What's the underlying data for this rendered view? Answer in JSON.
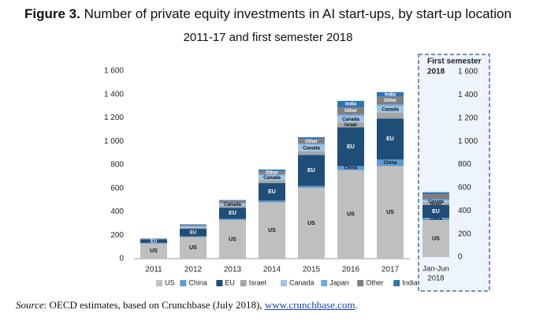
{
  "header": {
    "figure_label": "Figure 3.",
    "title": "Number of private equity investments in AI start-ups, by start-up location",
    "subtitle": "2011-17 and first semester 2018"
  },
  "source": {
    "label": "Source",
    "text": ": OECD estimates, based on Crunchbase (July 2018), ",
    "link": "www.crunchbase.com",
    "end": "."
  },
  "chart_data": {
    "type": "bar",
    "stacked": true,
    "categories": [
      "2011",
      "2012",
      "2013",
      "2014",
      "2015",
      "2016",
      "2017"
    ],
    "series": [
      {
        "name": "US",
        "color": "#bfbfbf",
        "values": [
          130,
          185,
          330,
          480,
          605,
          755,
          790
        ]
      },
      {
        "name": "China",
        "color": "#5b9bd5",
        "values": [
          5,
          5,
          10,
          15,
          15,
          35,
          55
        ]
      },
      {
        "name": "EU",
        "color": "#1f4e79",
        "values": [
          30,
          65,
          95,
          150,
          265,
          330,
          350
        ]
      },
      {
        "name": "Israel",
        "color": "#a6a6a6",
        "values": [
          3,
          8,
          15,
          25,
          30,
          40,
          50
        ]
      },
      {
        "name": "Canada",
        "color": "#9dc3e6",
        "values": [
          3,
          10,
          20,
          40,
          55,
          55,
          55
        ]
      },
      {
        "name": "Japan",
        "color": "#6fa8dc",
        "values": [
          2,
          5,
          5,
          10,
          10,
          15,
          15
        ]
      },
      {
        "name": "Other",
        "color": "#7f7f7f",
        "values": [
          2,
          10,
          20,
          25,
          40,
          60,
          65
        ]
      },
      {
        "name": "India",
        "color": "#2e75b6",
        "values": [
          0,
          5,
          5,
          15,
          15,
          55,
          40
        ]
      }
    ],
    "segment_labels": [
      [
        {
          "series": "US",
          "text": "US"
        },
        {
          "series": "EU",
          "text": "EU"
        }
      ],
      [
        {
          "series": "US",
          "text": "US"
        },
        {
          "series": "EU",
          "text": "EU"
        }
      ],
      [
        {
          "series": "US",
          "text": "US"
        },
        {
          "series": "EU",
          "text": "EU"
        },
        {
          "series": "Canada",
          "text": "Canada"
        }
      ],
      [
        {
          "series": "US",
          "text": "US"
        },
        {
          "series": "EU",
          "text": "EU"
        },
        {
          "series": "Canada",
          "text": "Canada"
        },
        {
          "series": "Other",
          "text": "Other"
        }
      ],
      [
        {
          "series": "US",
          "text": "US"
        },
        {
          "series": "EU",
          "text": "EU"
        },
        {
          "series": "Canada",
          "text": "Canada"
        },
        {
          "series": "Other",
          "text": "Other"
        }
      ],
      [
        {
          "series": "US",
          "text": "US"
        },
        {
          "series": "China",
          "text": "China"
        },
        {
          "series": "EU",
          "text": "EU"
        },
        {
          "series": "Israel",
          "text": "Israel"
        },
        {
          "series": "Canada",
          "text": "Canada"
        },
        {
          "series": "Other",
          "text": "Other"
        },
        {
          "series": "India",
          "text": "India"
        }
      ],
      [
        {
          "series": "US",
          "text": "US"
        },
        {
          "series": "China",
          "text": "China"
        },
        {
          "series": "EU",
          "text": "EU"
        },
        {
          "series": "Canada",
          "text": "Canada"
        },
        {
          "series": "Other",
          "text": "Other"
        },
        {
          "series": "India",
          "text": "India"
        }
      ]
    ],
    "ylim": [
      0,
      1600
    ],
    "yticks": [
      0,
      200,
      400,
      600,
      800,
      1000,
      1200,
      1400,
      1600
    ],
    "ytick_labels": [
      "0",
      "200",
      "400",
      "600",
      "800",
      "1 000",
      "1 200",
      "1 400",
      "1 600"
    ],
    "legend": {
      "position": "bottom"
    },
    "grid": false,
    "inset": {
      "title_line1": "First semester",
      "title_line2": "2018",
      "category_line1": "Jan-Jun",
      "category_line2": "2018",
      "ylim": [
        0,
        1600
      ],
      "yticks": [
        0,
        200,
        400,
        600,
        800,
        1000,
        1200,
        1400,
        1600
      ],
      "ytick_labels": [
        "0",
        "200",
        "400",
        "600",
        "800",
        "1 000",
        "1 200",
        "1 400",
        "1 600"
      ],
      "values": [
        320,
        20,
        110,
        20,
        20,
        10,
        45,
        15
      ],
      "segment_labels": [
        {
          "series": "US",
          "text": "US"
        },
        {
          "series": "China",
          "text": "China"
        },
        {
          "series": "EU",
          "text": "EU"
        },
        {
          "series": "Israel",
          "text": "Israel"
        },
        {
          "series": "Canada",
          "text": "Canada"
        }
      ]
    }
  }
}
